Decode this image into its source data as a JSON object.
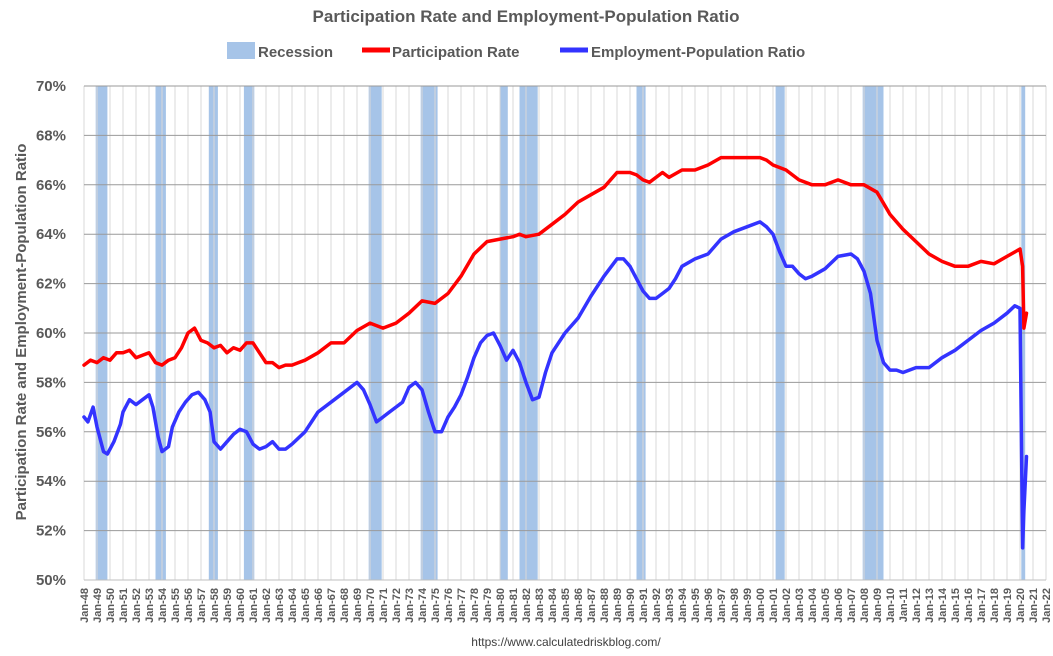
{
  "chart_data": {
    "type": "line",
    "title": "Participation Rate and Employment-Population Ratio",
    "ylabel": "Participation Rate and Employment-Population Ratio",
    "xlabel": "",
    "source": "https://www.calculatedriskblog.com/",
    "ylim": [
      50,
      70
    ],
    "yticks": [
      50,
      52,
      54,
      56,
      58,
      60,
      62,
      64,
      66,
      68,
      70
    ],
    "ytick_labels": [
      "50%",
      "52%",
      "54%",
      "56%",
      "58%",
      "60%",
      "62%",
      "64%",
      "66%",
      "68%",
      "70%"
    ],
    "xlim": [
      1948.0,
      2022.0
    ],
    "xtick_labels": [
      "Jan-48",
      "Jan-49",
      "Jan-50",
      "Jan-51",
      "Jan-52",
      "Jan-53",
      "Jan-54",
      "Jan-55",
      "Jan-56",
      "Jan-57",
      "Jan-58",
      "Jan-59",
      "Jan-60",
      "Jan-61",
      "Jan-62",
      "Jan-63",
      "Jan-64",
      "Jan-65",
      "Jan-66",
      "Jan-67",
      "Jan-68",
      "Jan-69",
      "Jan-70",
      "Jan-71",
      "Jan-72",
      "Jan-73",
      "Jan-74",
      "Jan-75",
      "Jan-76",
      "Jan-77",
      "Jan-78",
      "Jan-79",
      "Jan-80",
      "Jan-81",
      "Jan-82",
      "Jan-83",
      "Jan-84",
      "Jan-85",
      "Jan-86",
      "Jan-87",
      "Jan-88",
      "Jan-89",
      "Jan-90",
      "Jan-91",
      "Jan-92",
      "Jan-93",
      "Jan-94",
      "Jan-95",
      "Jan-96",
      "Jan-97",
      "Jan-98",
      "Jan-99",
      "Jan-00",
      "Jan-01",
      "Jan-02",
      "Jan-03",
      "Jan-04",
      "Jan-05",
      "Jan-06",
      "Jan-07",
      "Jan-08",
      "Jan-09",
      "Jan-10",
      "Jan-11",
      "Jan-12",
      "Jan-13",
      "Jan-14",
      "Jan-15",
      "Jan-16",
      "Jan-17",
      "Jan-18",
      "Jan-19",
      "Jan-20",
      "Jan-21",
      "Jan-22"
    ],
    "grid": true,
    "legend_position": "top-center",
    "legend": [
      {
        "name": "Recession",
        "color": "#a6c4e8",
        "kind": "bar"
      },
      {
        "name": "Participation Rate",
        "color": "#ff0000",
        "kind": "line"
      },
      {
        "name": "Employment-Population Ratio",
        "color": "#3333ff",
        "kind": "line"
      }
    ],
    "recessions": [
      {
        "start": 1948.9,
        "end": 1949.8
      },
      {
        "start": 1953.5,
        "end": 1954.3
      },
      {
        "start": 1957.6,
        "end": 1958.3
      },
      {
        "start": 1960.3,
        "end": 1961.1
      },
      {
        "start": 1969.9,
        "end": 1970.9
      },
      {
        "start": 1973.9,
        "end": 1975.2
      },
      {
        "start": 1980.0,
        "end": 1980.6
      },
      {
        "start": 1981.5,
        "end": 1982.9
      },
      {
        "start": 1990.5,
        "end": 1991.2
      },
      {
        "start": 2001.2,
        "end": 2001.9
      },
      {
        "start": 2007.9,
        "end": 2009.5
      },
      {
        "start": 2020.1,
        "end": 2020.4
      }
    ],
    "series": [
      {
        "name": "Participation Rate",
        "color": "#ff0000",
        "x": [
          1948.0,
          1948.5,
          1949.0,
          1949.5,
          1950.0,
          1950.5,
          1951.0,
          1951.5,
          1952.0,
          1952.5,
          1953.0,
          1953.5,
          1954.0,
          1954.5,
          1955.0,
          1955.5,
          1956.0,
          1956.5,
          1957.0,
          1957.5,
          1958.0,
          1958.5,
          1959.0,
          1959.5,
          1960.0,
          1960.5,
          1961.0,
          1961.5,
          1962.0,
          1962.5,
          1963.0,
          1963.5,
          1964.0,
          1964.5,
          1965.0,
          1966.0,
          1967.0,
          1968.0,
          1969.0,
          1970.0,
          1970.5,
          1971.0,
          1971.5,
          1972.0,
          1973.0,
          1974.0,
          1975.0,
          1976.0,
          1977.0,
          1978.0,
          1979.0,
          1980.0,
          1981.0,
          1981.5,
          1982.0,
          1983.0,
          1984.0,
          1985.0,
          1986.0,
          1987.0,
          1988.0,
          1989.0,
          1989.5,
          1990.0,
          1990.5,
          1991.0,
          1991.5,
          1992.0,
          1992.5,
          1993.0,
          1994.0,
          1995.0,
          1996.0,
          1997.0,
          1998.0,
          1999.0,
          2000.0,
          2000.5,
          2001.0,
          2002.0,
          2003.0,
          2004.0,
          2005.0,
          2006.0,
          2007.0,
          2008.0,
          2009.0,
          2010.0,
          2011.0,
          2012.0,
          2013.0,
          2014.0,
          2015.0,
          2016.0,
          2017.0,
          2018.0,
          2019.0,
          2020.0,
          2020.2,
          2020.3,
          2020.5
        ],
        "values": [
          58.7,
          58.9,
          58.8,
          59.0,
          58.9,
          59.2,
          59.2,
          59.3,
          59.0,
          59.1,
          59.2,
          58.8,
          58.7,
          58.9,
          59.0,
          59.4,
          60.0,
          60.2,
          59.7,
          59.6,
          59.4,
          59.5,
          59.2,
          59.4,
          59.3,
          59.6,
          59.6,
          59.2,
          58.8,
          58.8,
          58.6,
          58.7,
          58.7,
          58.8,
          58.9,
          59.2,
          59.6,
          59.6,
          60.1,
          60.4,
          60.3,
          60.2,
          60.3,
          60.4,
          60.8,
          61.3,
          61.2,
          61.6,
          62.3,
          63.2,
          63.7,
          63.8,
          63.9,
          64.0,
          63.9,
          64.0,
          64.4,
          64.8,
          65.3,
          65.6,
          65.9,
          66.5,
          66.5,
          66.5,
          66.4,
          66.2,
          66.1,
          66.3,
          66.5,
          66.3,
          66.6,
          66.6,
          66.8,
          67.1,
          67.1,
          67.1,
          67.1,
          67.0,
          66.8,
          66.6,
          66.2,
          66.0,
          66.0,
          66.2,
          66.0,
          66.0,
          65.7,
          64.8,
          64.2,
          63.7,
          63.2,
          62.9,
          62.7,
          62.7,
          62.9,
          62.8,
          63.1,
          63.4,
          62.7,
          60.2,
          60.8
        ]
      },
      {
        "name": "Employment-Population Ratio",
        "color": "#3333ff",
        "x": [
          1948.0,
          1948.3,
          1948.7,
          1949.0,
          1949.5,
          1949.8,
          1950.3,
          1950.8,
          1951.0,
          1951.5,
          1952.0,
          1952.5,
          1953.0,
          1953.3,
          1953.7,
          1954.0,
          1954.5,
          1954.8,
          1955.3,
          1955.8,
          1956.3,
          1956.8,
          1957.3,
          1957.7,
          1958.0,
          1958.5,
          1959.0,
          1959.5,
          1960.0,
          1960.5,
          1961.0,
          1961.5,
          1962.0,
          1962.5,
          1963.0,
          1963.5,
          1964.0,
          1965.0,
          1966.0,
          1967.0,
          1968.0,
          1969.0,
          1969.5,
          1970.0,
          1970.5,
          1971.0,
          1971.5,
          1972.0,
          1972.5,
          1973.0,
          1973.5,
          1974.0,
          1974.5,
          1975.0,
          1975.5,
          1976.0,
          1976.5,
          1977.0,
          1977.5,
          1978.0,
          1978.5,
          1979.0,
          1979.5,
          1980.0,
          1980.5,
          1981.0,
          1981.5,
          1982.0,
          1982.5,
          1983.0,
          1983.5,
          1984.0,
          1985.0,
          1986.0,
          1987.0,
          1988.0,
          1989.0,
          1989.5,
          1990.0,
          1990.5,
          1991.0,
          1991.5,
          1992.0,
          1992.5,
          1993.0,
          1993.5,
          1994.0,
          1995.0,
          1996.0,
          1997.0,
          1998.0,
          1999.0,
          2000.0,
          2000.5,
          2001.0,
          2001.5,
          2002.0,
          2002.5,
          2003.0,
          2003.5,
          2004.0,
          2005.0,
          2006.0,
          2007.0,
          2007.5,
          2008.0,
          2008.5,
          2009.0,
          2009.5,
          2010.0,
          2010.5,
          2011.0,
          2012.0,
          2013.0,
          2014.0,
          2015.0,
          2016.0,
          2017.0,
          2018.0,
          2019.0,
          2019.6,
          2020.0,
          2020.2,
          2020.3,
          2020.5
        ],
        "values": [
          56.6,
          56.4,
          57.0,
          56.2,
          55.2,
          55.1,
          55.6,
          56.3,
          56.8,
          57.3,
          57.1,
          57.3,
          57.5,
          57.0,
          55.8,
          55.2,
          55.4,
          56.2,
          56.8,
          57.2,
          57.5,
          57.6,
          57.3,
          56.8,
          55.6,
          55.3,
          55.6,
          55.9,
          56.1,
          56.0,
          55.5,
          55.3,
          55.4,
          55.6,
          55.3,
          55.3,
          55.5,
          56.0,
          56.8,
          57.2,
          57.6,
          58.0,
          57.7,
          57.1,
          56.4,
          56.6,
          56.8,
          57.0,
          57.2,
          57.8,
          58.0,
          57.7,
          56.8,
          56.0,
          56.0,
          56.6,
          57.0,
          57.5,
          58.2,
          59.0,
          59.6,
          59.9,
          60.0,
          59.5,
          58.9,
          59.3,
          58.8,
          58.0,
          57.3,
          57.4,
          58.4,
          59.2,
          60.0,
          60.6,
          61.5,
          62.3,
          63.0,
          63.0,
          62.7,
          62.2,
          61.7,
          61.4,
          61.4,
          61.6,
          61.8,
          62.2,
          62.7,
          63.0,
          63.2,
          63.8,
          64.1,
          64.3,
          64.5,
          64.3,
          64.0,
          63.3,
          62.7,
          62.7,
          62.4,
          62.2,
          62.3,
          62.6,
          63.1,
          63.2,
          63.0,
          62.5,
          61.6,
          59.7,
          58.8,
          58.5,
          58.5,
          58.4,
          58.6,
          58.6,
          59.0,
          59.3,
          59.7,
          60.1,
          60.4,
          60.8,
          61.1,
          61.0,
          51.3,
          52.8,
          55.0
        ]
      }
    ]
  }
}
